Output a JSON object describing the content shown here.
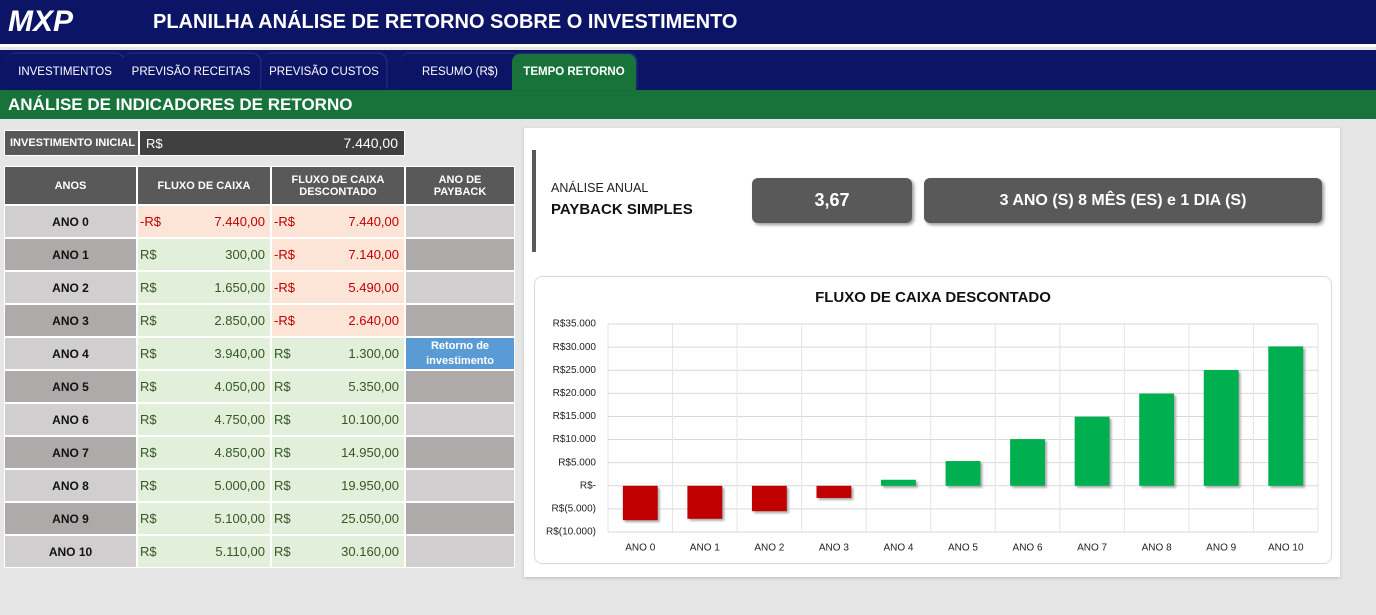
{
  "header": {
    "logo": "MXP",
    "title": "PLANILHA ANÁLISE DE RETORNO SOBRE O INVESTIMENTO"
  },
  "tabs": [
    "INVESTIMENTOS",
    "PREVISÃO RECEITAS",
    "PREVISÃO CUSTOS",
    "RESUMO (R$)",
    "TEMPO RETORNO"
  ],
  "section_title": "ANÁLISE DE INDICADORES DE RETORNO",
  "initial_investment": {
    "label": "INVESTIMENTO INICIAL",
    "currency": "R$",
    "amount": "7.440,00"
  },
  "table": {
    "columns": [
      "ANOS",
      "FLUXO DE CAIXA",
      "FLUXO DE CAIXA DESCONTADO",
      "ANO DE PAYBACK"
    ],
    "rows": [
      {
        "year": "ANO 0",
        "cash_flow": {
          "currency": "-R$",
          "amount": "7.440,00"
        },
        "discounted": {
          "currency": "-R$",
          "amount": "7.440,00"
        }
      },
      {
        "year": "ANO 1",
        "cash_flow": {
          "currency": "R$",
          "amount": "300,00"
        },
        "discounted": {
          "currency": "-R$",
          "amount": "7.140,00"
        }
      },
      {
        "year": "ANO 2",
        "cash_flow": {
          "currency": "R$",
          "amount": "1.650,00"
        },
        "discounted": {
          "currency": "-R$",
          "amount": "5.490,00"
        }
      },
      {
        "year": "ANO 3",
        "cash_flow": {
          "currency": "R$",
          "amount": "2.850,00"
        },
        "discounted": {
          "currency": "-R$",
          "amount": "2.640,00"
        }
      },
      {
        "year": "ANO 4",
        "cash_flow": {
          "currency": "R$",
          "amount": "3.940,00"
        },
        "discounted": {
          "currency": "R$",
          "amount": "1.300,00"
        },
        "payback": "Retorno de investimento"
      },
      {
        "year": "ANO 5",
        "cash_flow": {
          "currency": "R$",
          "amount": "4.050,00"
        },
        "discounted": {
          "currency": "R$",
          "amount": "5.350,00"
        }
      },
      {
        "year": "ANO 6",
        "cash_flow": {
          "currency": "R$",
          "amount": "4.750,00"
        },
        "discounted": {
          "currency": "R$",
          "amount": "10.100,00"
        }
      },
      {
        "year": "ANO 7",
        "cash_flow": {
          "currency": "R$",
          "amount": "4.850,00"
        },
        "discounted": {
          "currency": "R$",
          "amount": "14.950,00"
        }
      },
      {
        "year": "ANO 8",
        "cash_flow": {
          "currency": "R$",
          "amount": "5.000,00"
        },
        "discounted": {
          "currency": "R$",
          "amount": "19.950,00"
        }
      },
      {
        "year": "ANO 9",
        "cash_flow": {
          "currency": "R$",
          "amount": "5.100,00"
        },
        "discounted": {
          "currency": "R$",
          "amount": "25.050,00"
        }
      },
      {
        "year": "ANO 10",
        "cash_flow": {
          "currency": "R$",
          "amount": "5.110,00"
        },
        "discounted": {
          "currency": "R$",
          "amount": "30.160,00"
        }
      }
    ]
  },
  "payback": {
    "caption": "ANÁLISE ANUAL",
    "title": "PAYBACK SIMPLES",
    "value": "3,67",
    "text": "3 ANO (S) 8 MÊS (ES) e 1 DIA (S)"
  },
  "chart_data": {
    "type": "bar",
    "title": "FLUXO DE CAIXA DESCONTADO",
    "categories": [
      "ANO 0",
      "ANO 1",
      "ANO 2",
      "ANO 3",
      "ANO 4",
      "ANO 5",
      "ANO 6",
      "ANO 7",
      "ANO 8",
      "ANO 9",
      "ANO 10"
    ],
    "values": [
      -7440,
      -7140,
      -5490,
      -2640,
      1300,
      5350,
      10100,
      14950,
      19950,
      25050,
      30160
    ],
    "color": "#00b050",
    "negative_color": "#c00000",
    "ylim": [
      -10000,
      35000
    ],
    "yticks": [
      {
        "value": -10000,
        "label": "R$(10.000)"
      },
      {
        "value": -5000,
        "label": "R$(5.000)"
      },
      {
        "value": 0,
        "label": "R$-"
      },
      {
        "value": 5000,
        "label": "R$5.000"
      },
      {
        "value": 10000,
        "label": "R$10.000"
      },
      {
        "value": 15000,
        "label": "R$15.000"
      },
      {
        "value": 20000,
        "label": "R$20.000"
      },
      {
        "value": 25000,
        "label": "R$25.000"
      },
      {
        "value": 30000,
        "label": "R$30.000"
      },
      {
        "value": 35000,
        "label": "R$35.000"
      }
    ],
    "grid": true
  }
}
